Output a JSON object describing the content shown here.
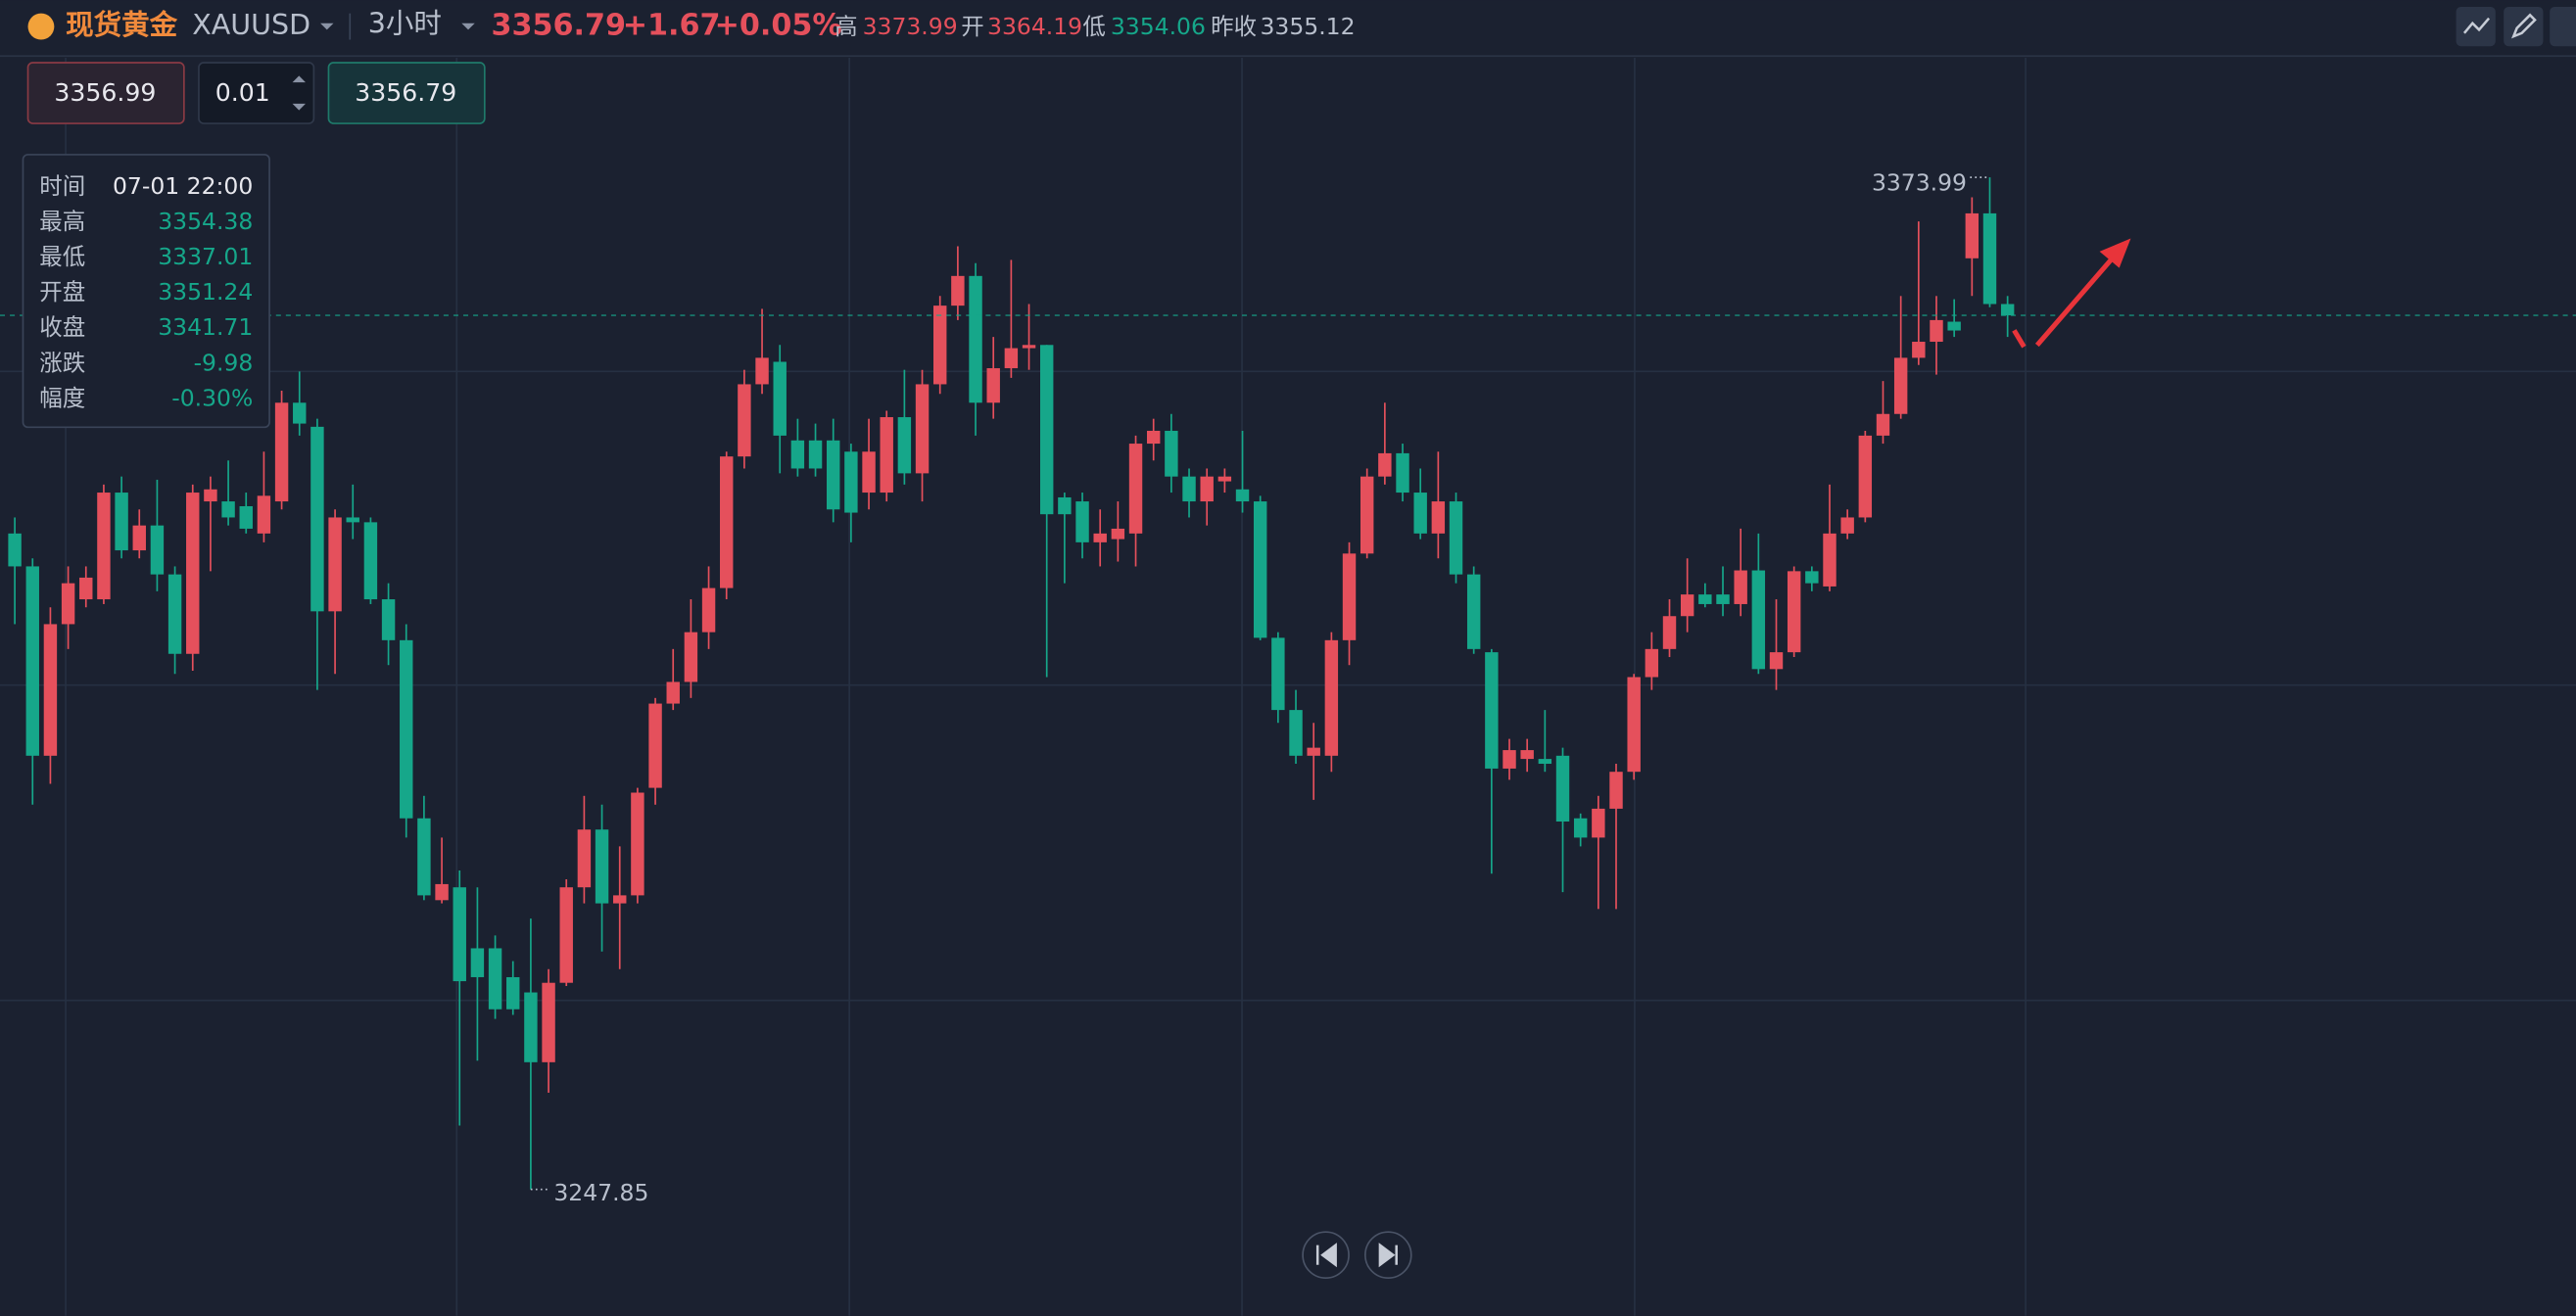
{
  "header": {
    "name": "现货黄金",
    "symbol": "XAUUSD",
    "interval": "3小时",
    "price": "3356.79",
    "change": "+1.67",
    "change_pct": "+0.05%",
    "stats": [
      {
        "label": "高",
        "value": "3373.99"
      },
      {
        "label": "开",
        "value": "3364.19"
      },
      {
        "label": "低",
        "value": "3354.06"
      },
      {
        "label": "昨收",
        "value": "3355.12"
      }
    ]
  },
  "order": {
    "sell": "3356.99",
    "quantity": "0.01",
    "buy": "3356.79"
  },
  "tooltip": {
    "rows": [
      {
        "label": "时间",
        "value": "07-01 22:00"
      },
      {
        "label": "最高",
        "value": "3354.38"
      },
      {
        "label": "最低",
        "value": "3337.01"
      },
      {
        "label": "开盘",
        "value": "3351.24"
      },
      {
        "label": "收盘",
        "value": "3341.71"
      },
      {
        "label": "涨跌",
        "value": "-9.98"
      },
      {
        "label": "幅度",
        "value": "-0.30%"
      }
    ]
  },
  "chart_data": {
    "type": "candlestick",
    "up_color": "#e5505c",
    "down_color": "#16a78a",
    "ylim": [
      3232.1,
      3388.9
    ],
    "open": [
      3329.6,
      3325.5,
      3301.9,
      3318.3,
      3321.4,
      3321.4,
      3334.7,
      3327.5,
      3330.6,
      3324.5,
      3314.6,
      3333.6,
      3333.6,
      3333.0,
      3329.6,
      3333.6,
      3345.9,
      3342.9,
      3319.9,
      3331.6,
      3331.0,
      3321.4,
      3316.3,
      3294.1,
      3283.9,
      3285.5,
      3277.9,
      3277.9,
      3274.3,
      3272.4,
      3263.7,
      3273.6,
      3285.5,
      3292.7,
      3283.5,
      3284.5,
      3297.9,
      3308.4,
      3311.1,
      3317.3,
      3322.8,
      3339.2,
      3348.2,
      3351.0,
      3341.2,
      3341.2,
      3341.2,
      3339.8,
      3334.7,
      3334.7,
      3344.1,
      3337.1,
      3348.2,
      3358.0,
      3361.7,
      3345.9,
      3350.2,
      3352.7,
      3353.1,
      3334.1,
      3333.6,
      3328.5,
      3328.9,
      3329.6,
      3340.8,
      3342.4,
      3336.7,
      3333.6,
      3336.1,
      3335.1,
      3333.6,
      3316.6,
      3307.6,
      3301.9,
      3301.9,
      3316.3,
      3327.1,
      3336.7,
      3339.6,
      3334.7,
      3329.6,
      3333.6,
      3324.5,
      3314.8,
      3300.3,
      3301.5,
      3301.5,
      3301.9,
      3294.1,
      3291.7,
      3295.3,
      3299.9,
      3311.7,
      3315.2,
      3319.3,
      3322.0,
      3322.0,
      3320.8,
      3325.0,
      3312.7,
      3314.8,
      3324.9,
      3323.0,
      3329.6,
      3331.6,
      3341.8,
      3344.5,
      3351.5,
      3353.5,
      3356.0,
      3363.9,
      3369.5,
      3358.2
    ],
    "high": [
      3331.6,
      3326.5,
      3320.4,
      3325.5,
      3325.5,
      3335.7,
      3336.7,
      3332.6,
      3336.3,
      3325.5,
      3335.7,
      3336.7,
      3338.7,
      3334.7,
      3339.8,
      3347.4,
      3349.8,
      3343.9,
      3332.6,
      3335.7,
      3331.6,
      3323.4,
      3318.3,
      3296.9,
      3291.7,
      3287.6,
      3285.5,
      3279.5,
      3276.3,
      3281.6,
      3275.3,
      3286.5,
      3296.9,
      3295.8,
      3290.6,
      3297.9,
      3309.1,
      3315.2,
      3321.4,
      3325.5,
      3339.8,
      3350.0,
      3357.6,
      3353.1,
      3343.9,
      3343.3,
      3343.9,
      3340.8,
      3343.9,
      3344.9,
      3350.0,
      3350.0,
      3359.2,
      3365.4,
      3363.3,
      3354.1,
      3363.7,
      3358.2,
      3353.1,
      3334.7,
      3334.7,
      3332.6,
      3333.6,
      3341.8,
      3343.9,
      3344.5,
      3337.7,
      3337.7,
      3337.7,
      3342.4,
      3334.3,
      3317.3,
      3310.1,
      3306.0,
      3317.3,
      3328.5,
      3337.7,
      3345.9,
      3340.8,
      3337.7,
      3339.8,
      3334.7,
      3325.5,
      3315.2,
      3304.0,
      3304.0,
      3307.6,
      3302.9,
      3294.7,
      3296.9,
      3300.9,
      3312.1,
      3317.3,
      3321.4,
      3326.5,
      3323.4,
      3325.5,
      3330.2,
      3329.6,
      3321.4,
      3325.5,
      3325.5,
      3335.7,
      3332.6,
      3342.4,
      3348.6,
      3359.2,
      3368.5,
      3359.2,
      3358.8,
      3371.5,
      3373.99,
      3359.2
    ],
    "low": [
      3318.3,
      3295.8,
      3298.4,
      3315.2,
      3320.4,
      3320.8,
      3326.5,
      3326.5,
      3322.4,
      3312.1,
      3312.5,
      3324.9,
      3330.6,
      3329.6,
      3328.5,
      3332.6,
      3341.8,
      3310.1,
      3312.1,
      3328.9,
      3320.8,
      3313.2,
      3291.7,
      3283.9,
      3283.5,
      3255.8,
      3263.9,
      3269.1,
      3269.6,
      3247.85,
      3259.9,
      3273.2,
      3283.5,
      3277.5,
      3275.3,
      3283.5,
      3295.8,
      3307.6,
      3309.1,
      3315.2,
      3321.4,
      3337.7,
      3347.0,
      3337.1,
      3336.7,
      3336.7,
      3331.0,
      3328.5,
      3332.6,
      3333.6,
      3335.7,
      3333.6,
      3347.0,
      3356.2,
      3341.8,
      3343.9,
      3349.0,
      3350.0,
      3311.7,
      3323.4,
      3326.5,
      3325.5,
      3326.1,
      3325.5,
      3338.7,
      3334.7,
      3331.6,
      3330.6,
      3334.7,
      3332.2,
      3316.3,
      3306.0,
      3300.9,
      3296.4,
      3299.9,
      3313.2,
      3326.5,
      3335.7,
      3333.6,
      3328.9,
      3326.5,
      3323.4,
      3314.6,
      3287.2,
      3298.9,
      3299.9,
      3299.9,
      3284.9,
      3290.6,
      3282.8,
      3282.8,
      3298.9,
      3310.1,
      3314.2,
      3317.3,
      3320.4,
      3319.3,
      3319.3,
      3312.1,
      3310.1,
      3314.2,
      3322.4,
      3322.4,
      3328.9,
      3331.0,
      3340.8,
      3343.9,
      3350.6,
      3349.4,
      3354.1,
      3359.2,
      3357.8,
      3354.1
    ],
    "close": [
      3325.5,
      3301.9,
      3318.3,
      3323.4,
      3324.1,
      3334.7,
      3327.5,
      3330.6,
      3324.5,
      3314.6,
      3334.7,
      3335.1,
      3331.6,
      3330.2,
      3334.3,
      3345.9,
      3343.3,
      3319.9,
      3331.6,
      3331.0,
      3321.4,
      3316.3,
      3294.1,
      3284.5,
      3285.9,
      3273.8,
      3274.3,
      3270.3,
      3270.3,
      3263.7,
      3273.6,
      3285.5,
      3292.7,
      3283.5,
      3284.5,
      3297.3,
      3308.4,
      3311.1,
      3317.3,
      3322.8,
      3339.2,
      3348.2,
      3351.5,
      3341.8,
      3337.7,
      3337.7,
      3332.6,
      3332.2,
      3339.8,
      3344.1,
      3337.1,
      3348.2,
      3358.0,
      3361.7,
      3345.9,
      3350.2,
      3352.7,
      3353.1,
      3332.0,
      3332.0,
      3328.5,
      3329.6,
      3330.2,
      3340.8,
      3342.4,
      3336.7,
      3333.6,
      3336.7,
      3336.7,
      3333.6,
      3316.6,
      3307.6,
      3301.9,
      3302.9,
      3316.3,
      3327.1,
      3336.7,
      3339.6,
      3334.7,
      3329.6,
      3333.6,
      3324.5,
      3315.2,
      3300.3,
      3302.6,
      3302.6,
      3300.9,
      3293.7,
      3291.7,
      3295.3,
      3299.9,
      3311.7,
      3315.2,
      3319.3,
      3322.0,
      3320.8,
      3320.8,
      3325.0,
      3312.7,
      3314.8,
      3324.9,
      3323.4,
      3329.6,
      3331.6,
      3341.8,
      3344.5,
      3351.5,
      3353.5,
      3356.2,
      3354.9,
      3369.5,
      3358.2,
      3356.79
    ]
  }
}
